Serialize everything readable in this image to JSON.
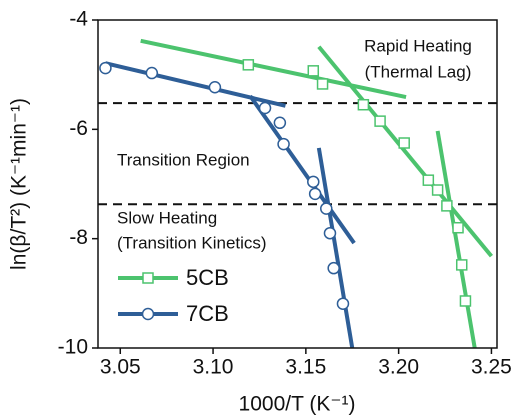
{
  "chart_data": {
    "type": "scatter",
    "xlabel": "1000/T (K⁻¹)",
    "ylabel": "ln(β/T²) (K⁻¹min⁻¹)",
    "xlim": [
      3.038,
      3.253
    ],
    "ylim": [
      -10,
      -4
    ],
    "xticks": [
      3.05,
      {
        "value": 3.1,
        "label": "3.10"
      },
      3.15,
      {
        "value": 3.2,
        "label": "3.20"
      },
      3.25
    ],
    "yticks": [
      -10,
      -8,
      -6,
      -4
    ],
    "hlines": [
      -5.52,
      -7.37
    ],
    "annotations": [
      [
        "Rapid Heating",
        "(Thermal Lag)"
      ],
      [
        "Transition Region"
      ],
      [
        "Slow Heating",
        "(Transition Kinetics)"
      ]
    ],
    "series": [
      {
        "name": "5CB",
        "color": "#4cc36e",
        "marker": "square",
        "x": [
          3.119,
          3.154,
          3.159,
          3.181,
          3.19,
          3.203,
          3.216,
          3.221,
          3.226,
          3.232,
          3.234,
          3.236
        ],
        "values": [
          -4.82,
          -4.93,
          -5.17,
          -5.55,
          -5.85,
          -6.25,
          -6.93,
          -7.11,
          -7.4,
          -7.8,
          -8.48,
          -9.14
        ],
        "fit_lines": [
          {
            "x": [
              3.061,
              3.204
            ],
            "y": [
              -4.38,
              -5.41
            ]
          },
          {
            "x": [
              3.157,
              3.25
            ],
            "y": [
              -4.49,
              -8.32
            ]
          },
          {
            "x": [
              3.221,
              3.241
            ],
            "y": [
              -6.03,
              -10
            ]
          }
        ]
      },
      {
        "name": "7CB",
        "color": "#2e5e97",
        "marker": "circle",
        "x": [
          3.042,
          3.067,
          3.101,
          3.128,
          3.136,
          3.138,
          3.154,
          3.155,
          3.161,
          3.163,
          3.165,
          3.17
        ],
        "values": [
          -4.88,
          -4.97,
          -5.23,
          -5.61,
          -5.88,
          -6.27,
          -6.96,
          -7.18,
          -7.45,
          -7.9,
          -8.54,
          -9.19
        ],
        "fit_lines": [
          {
            "x": [
              3.042,
              3.139
            ],
            "y": [
              -4.79,
              -5.57
            ]
          },
          {
            "x": [
              3.12,
              3.176
            ],
            "y": [
              -5.39,
              -8.08
            ]
          },
          {
            "x": [
              3.157,
              3.175
            ],
            "y": [
              -6.34,
              -10
            ]
          }
        ]
      }
    ]
  }
}
